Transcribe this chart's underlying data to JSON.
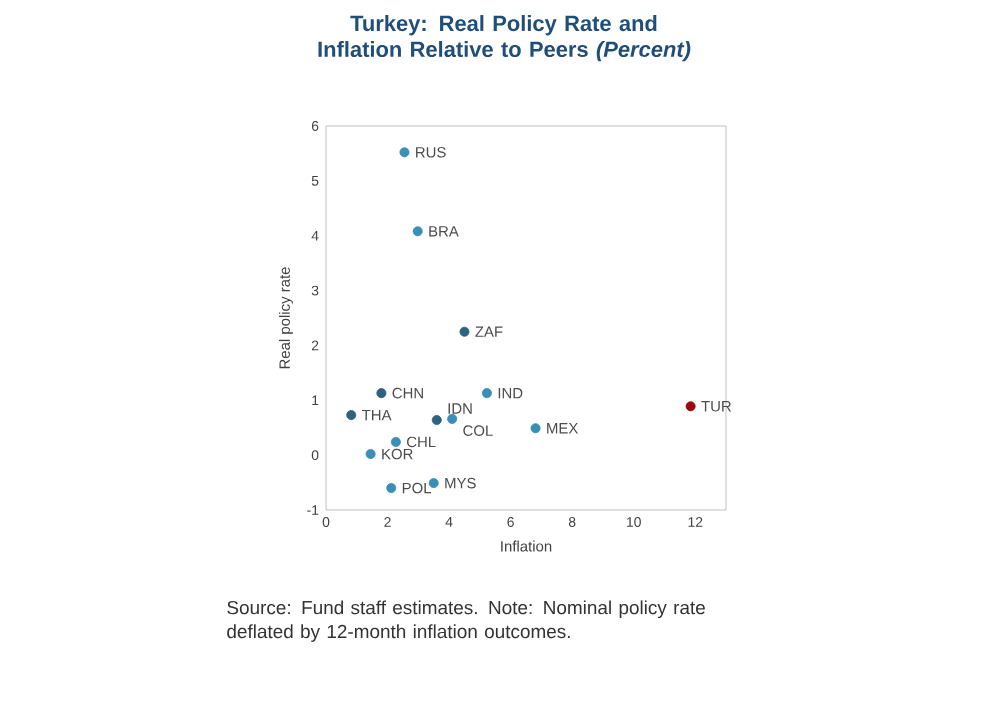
{
  "chart_data": {
    "type": "scatter",
    "title": "Turkey: Real Policy Rate and Inflation Relative to Peers *(Percent)*",
    "xlabel": "Inflation",
    "ylabel": "Real policy rate",
    "series": [
      {
        "x": [
          2.55,
          2.98,
          4.5,
          1.8,
          5.23,
          3.6,
          4.1,
          0.82,
          6.81,
          2.27,
          1.45,
          2.12,
          3.5,
          11.85
        ],
        "values": [
          5.52,
          4.08,
          2.25,
          1.13,
          1.13,
          0.64,
          0.66,
          0.73,
          0.49,
          0.24,
          0.02,
          -0.6,
          -0.51,
          0.89
        ],
        "colors": [
          "#3a8fb7",
          "#3a8fb7",
          "#2e6380",
          "#2e6380",
          "#3a8fb7",
          "#2e6380",
          "#3a8fb7",
          "#2e6380",
          "#3a8fb7",
          "#3a8fb7",
          "#3a8fb7",
          "#3a8fb7",
          "#3a8fb7",
          "#9b0a0a"
        ]
      }
    ],
    "marker": "circle",
    "grid": false,
    "xlim": [
      0,
      13
    ],
    "ylim": [
      -1,
      6
    ],
    "xticks": [
      0,
      2,
      4,
      6,
      8,
      10,
      12
    ],
    "yticks": [
      -1,
      0,
      1,
      2,
      3,
      4,
      5,
      6
    ],
    "annotations": [
      {
        "text": "RUS",
        "x": 2.55,
        "y": 5.52
      },
      {
        "text": "BRA",
        "x": 2.98,
        "y": 4.08
      },
      {
        "text": "ZAF",
        "x": 4.5,
        "y": 2.25
      },
      {
        "text": "CHN",
        "x": 1.8,
        "y": 1.13
      },
      {
        "text": "IND",
        "x": 5.23,
        "y": 1.13
      },
      {
        "text": "IDN",
        "x": 3.6,
        "y": 0.64
      },
      {
        "text": "COL",
        "x": 4.1,
        "y": 0.66
      },
      {
        "text": "THA",
        "x": 0.82,
        "y": 0.73
      },
      {
        "text": "MEX",
        "x": 6.81,
        "y": 0.49
      },
      {
        "text": "CHL",
        "x": 2.27,
        "y": 0.24
      },
      {
        "text": "KOR",
        "x": 1.45,
        "y": 0.02
      },
      {
        "text": "POL",
        "x": 2.12,
        "y": -0.6
      },
      {
        "text": "MYS",
        "x": 3.5,
        "y": -0.51
      },
      {
        "text": "TUR",
        "x": 11.85,
        "y": 0.89
      },
      "Source: Fund staff estimates. Note: Nominal policy rate deflated by 12-month inflation outcomes."
    ]
  }
}
